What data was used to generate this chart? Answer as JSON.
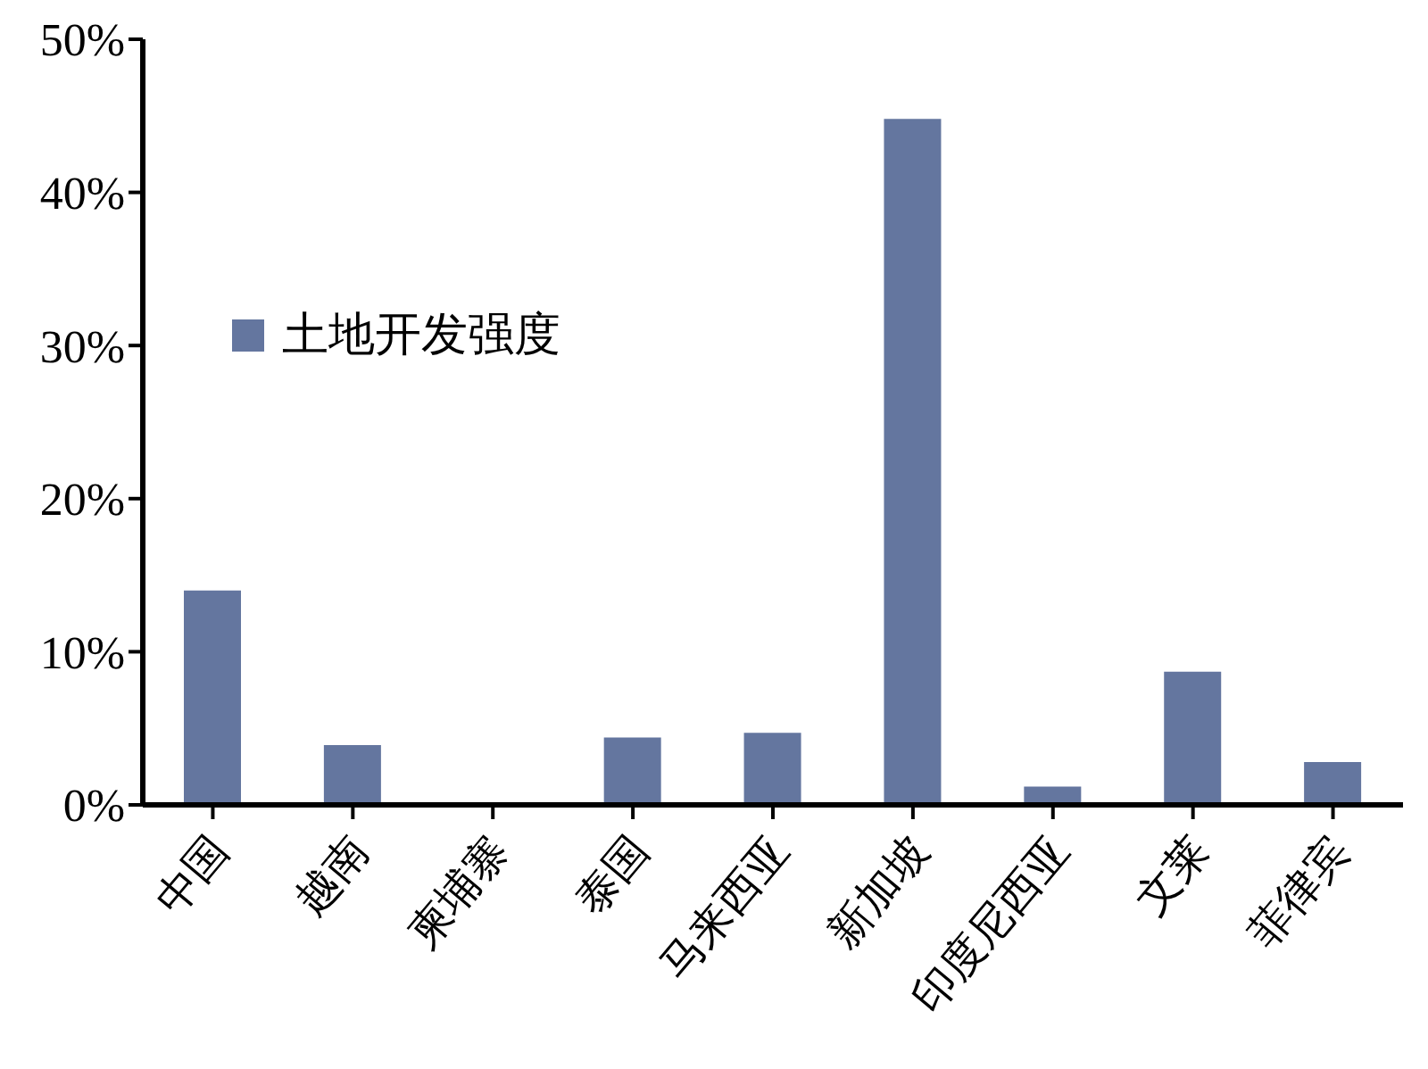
{
  "chart_data": {
    "type": "bar",
    "categories": [
      "中国",
      "越南",
      "柬埔寨",
      "泰国",
      "马来西亚",
      "新加坡",
      "印度尼西亚",
      "文莱",
      "菲律宾"
    ],
    "series": [
      {
        "name": "土地开发强度",
        "color": "#64769f",
        "values": [
          14,
          3.9,
          0,
          4.4,
          4.7,
          44.8,
          1.2,
          8.7,
          2.8
        ]
      }
    ],
    "ylim": [
      0,
      50
    ],
    "yticks": [
      {
        "value": 0,
        "label": "0%"
      },
      {
        "value": 10,
        "label": "10%"
      },
      {
        "value": 20,
        "label": "20%"
      },
      {
        "value": 30,
        "label": "30%"
      },
      {
        "value": 40,
        "label": "40%"
      },
      {
        "value": 50,
        "label": "50%"
      }
    ],
    "grid": false,
    "legend": "top left"
  }
}
